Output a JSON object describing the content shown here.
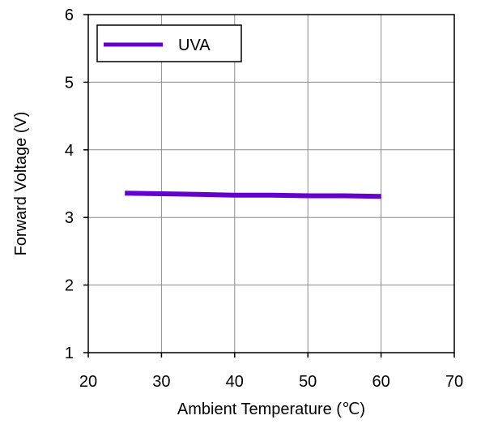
{
  "chart_data": {
    "type": "line",
    "title": "",
    "xlabel": "Ambient Temperature (℃)",
    "ylabel": "Forward Voltage (V)",
    "xlim": [
      20,
      70
    ],
    "ylim": [
      1,
      6
    ],
    "xticks": [
      20,
      30,
      40,
      50,
      60,
      70
    ],
    "yticks": [
      1,
      2,
      3,
      4,
      5,
      6
    ],
    "grid": true,
    "legend": "top-left",
    "series": [
      {
        "name": "UVA",
        "color": "#6600cc",
        "x": [
          25,
          30,
          35,
          40,
          45,
          50,
          55,
          60
        ],
        "y": [
          3.36,
          3.35,
          3.34,
          3.33,
          3.33,
          3.32,
          3.32,
          3.31
        ]
      }
    ]
  }
}
